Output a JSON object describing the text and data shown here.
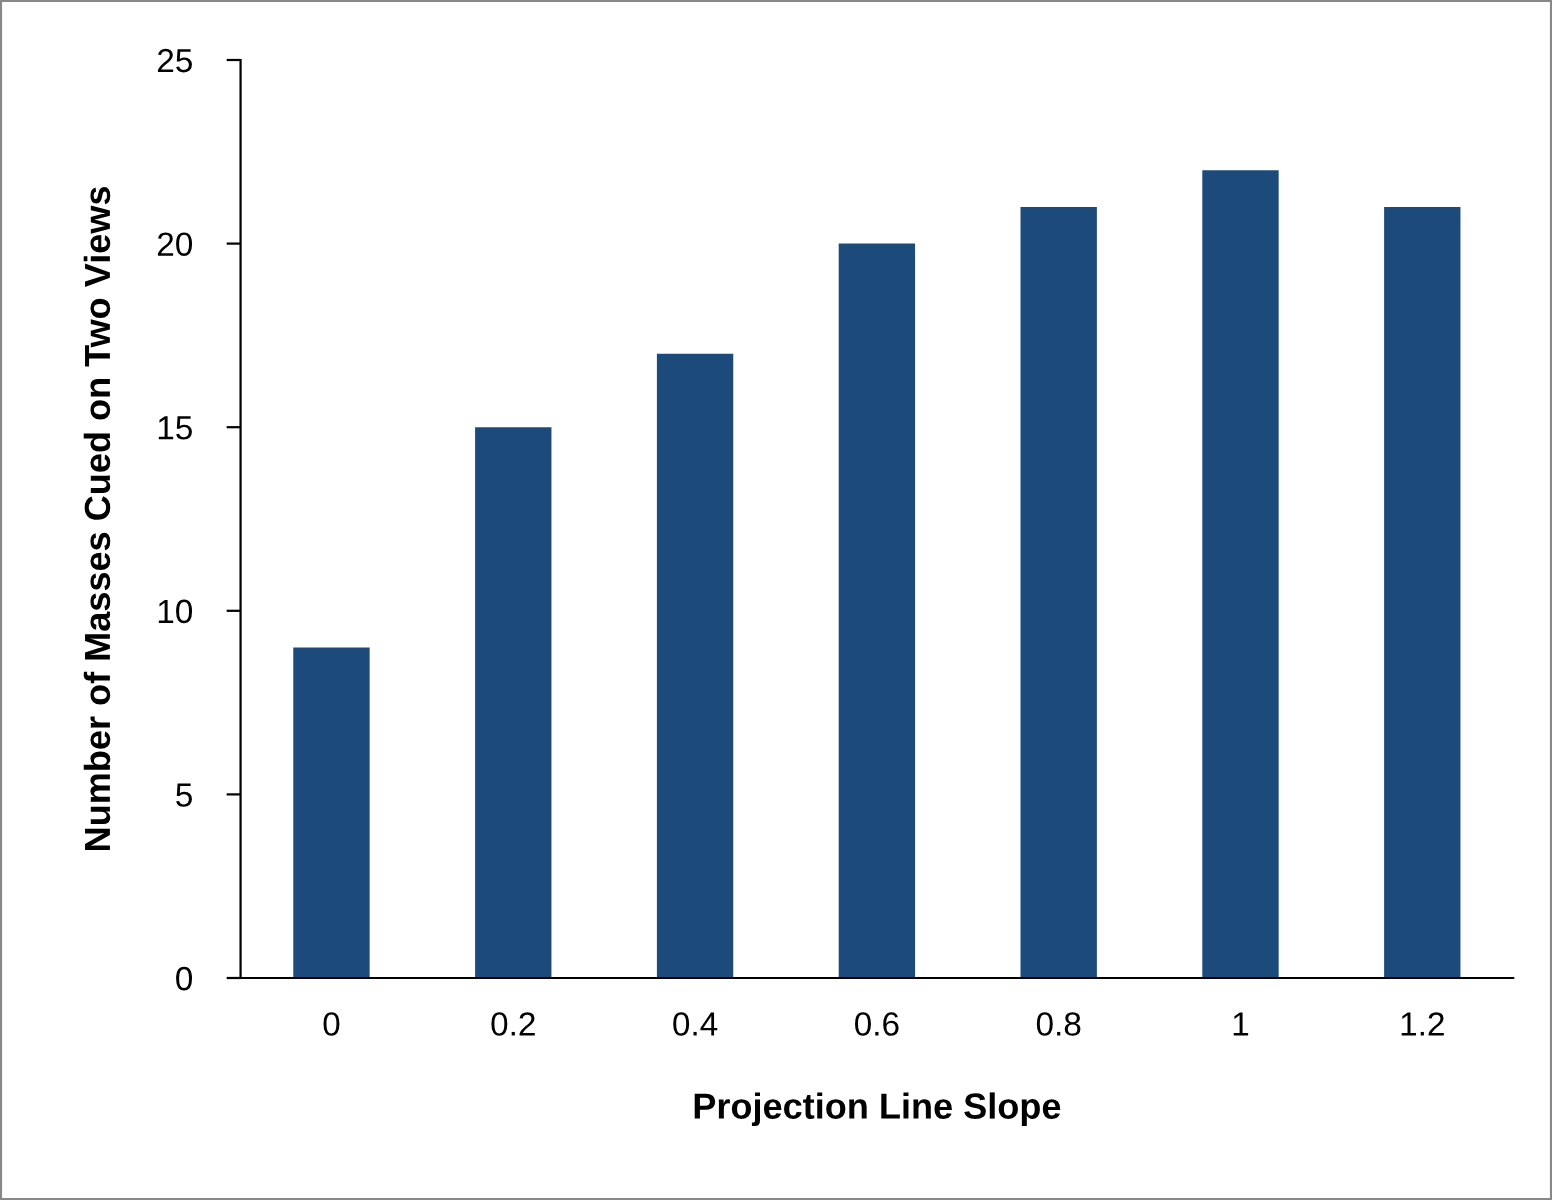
{
  "chart_data": {
    "type": "bar",
    "xlabel": "Projection Line Slope",
    "ylabel": "Number of Masses Cued on Two Views",
    "categories": [
      "0",
      "0.2",
      "0.4",
      "0.6",
      "0.8",
      "1",
      "1.2"
    ],
    "values": [
      9,
      15,
      17,
      20,
      21,
      22,
      21
    ],
    "color": "#1b4a7b",
    "ylim": [
      0,
      25
    ],
    "yticks": [
      0,
      5,
      10,
      15,
      20,
      25
    ],
    "grid": false,
    "legend": false
  }
}
